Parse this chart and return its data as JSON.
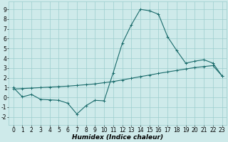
{
  "xlabel": "Humidex (Indice chaleur)",
  "xlim": [
    -0.5,
    23.5
  ],
  "ylim": [
    -2.8,
    9.8
  ],
  "xticks": [
    0,
    1,
    2,
    3,
    4,
    5,
    6,
    7,
    8,
    9,
    10,
    11,
    12,
    13,
    14,
    15,
    16,
    17,
    18,
    19,
    20,
    21,
    22,
    23
  ],
  "yticks": [
    -2,
    -1,
    0,
    1,
    2,
    3,
    4,
    5,
    6,
    7,
    8,
    9
  ],
  "bg_color": "#ceeaea",
  "grid_color": "#9ccece",
  "line_color": "#1a6b6b",
  "line1_x": [
    0,
    1,
    2,
    3,
    4,
    5,
    6,
    7,
    8,
    9,
    10,
    11,
    12,
    13,
    14,
    15,
    16,
    17,
    18,
    19,
    20,
    21,
    22,
    23
  ],
  "line1_y": [
    1.0,
    0.05,
    0.3,
    -0.2,
    -0.25,
    -0.3,
    -0.6,
    -1.7,
    -0.85,
    -0.3,
    -0.35,
    2.5,
    5.5,
    7.4,
    9.0,
    8.85,
    8.5,
    6.2,
    4.8,
    3.5,
    3.7,
    3.85,
    3.5,
    2.2
  ],
  "line2_x": [
    0,
    1,
    2,
    3,
    4,
    5,
    6,
    7,
    8,
    9,
    10,
    11,
    12,
    13,
    14,
    15,
    16,
    17,
    18,
    19,
    20,
    21,
    22,
    23
  ],
  "line2_y": [
    0.85,
    0.9,
    0.95,
    1.0,
    1.05,
    1.1,
    1.15,
    1.22,
    1.3,
    1.38,
    1.5,
    1.62,
    1.78,
    1.95,
    2.12,
    2.28,
    2.45,
    2.6,
    2.75,
    2.9,
    3.05,
    3.15,
    3.25,
    2.2
  ],
  "tick_fontsize": 5.5,
  "xlabel_fontsize": 6.5
}
